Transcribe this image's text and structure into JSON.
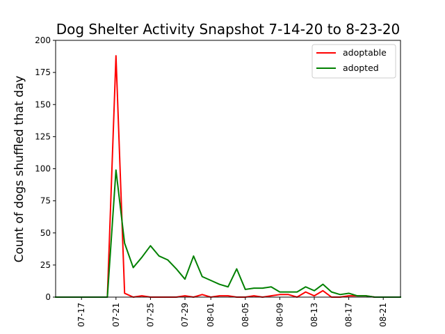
{
  "chart_data": {
    "type": "line",
    "title": "Dog Shelter Activity Snapshot 7-14-20 to 8-23-20",
    "xlabel": "",
    "ylabel": "Count of dogs shuffled that day",
    "x_start_label": "07-14",
    "x": [
      "07-14",
      "07-15",
      "07-16",
      "07-17",
      "07-18",
      "07-19",
      "07-20",
      "07-21",
      "07-22",
      "07-23",
      "07-24",
      "07-25",
      "07-26",
      "07-27",
      "07-28",
      "07-29",
      "07-30",
      "07-31",
      "08-01",
      "08-02",
      "08-03",
      "08-04",
      "08-05",
      "08-06",
      "08-07",
      "08-08",
      "08-09",
      "08-10",
      "08-11",
      "08-12",
      "08-13",
      "08-14",
      "08-15",
      "08-16",
      "08-17",
      "08-18",
      "08-19",
      "08-20",
      "08-21",
      "08-22",
      "08-23"
    ],
    "xlim": [
      "07-14",
      "08-23"
    ],
    "xticks": [
      "07-17",
      "07-21",
      "07-25",
      "07-29",
      "08-01",
      "08-05",
      "08-09",
      "08-13",
      "08-17",
      "08-21"
    ],
    "ylim": [
      0,
      200
    ],
    "yticks": [
      0,
      25,
      50,
      75,
      100,
      125,
      150,
      175,
      200
    ],
    "grid": false,
    "legend_position": "top-right",
    "series": [
      {
        "name": "adoptable",
        "color": "#ff0000",
        "values": [
          0,
          0,
          0,
          0,
          0,
          0,
          0,
          188,
          3,
          0,
          1,
          0,
          0,
          0,
          0,
          1,
          0,
          2,
          0,
          1,
          1,
          0,
          0,
          1,
          0,
          1,
          2,
          2,
          0,
          4,
          1,
          5,
          0,
          0,
          1,
          1,
          1,
          0,
          0,
          0,
          0
        ]
      },
      {
        "name": "adopted",
        "color": "#008000",
        "values": [
          0,
          0,
          0,
          0,
          0,
          0,
          0,
          99,
          42,
          23,
          31,
          40,
          32,
          29,
          22,
          14,
          32,
          16,
          13,
          10,
          8,
          22,
          6,
          7,
          7,
          8,
          4,
          4,
          4,
          8,
          5,
          10,
          4,
          2,
          3,
          1,
          1,
          0,
          0,
          0,
          0
        ]
      }
    ]
  }
}
